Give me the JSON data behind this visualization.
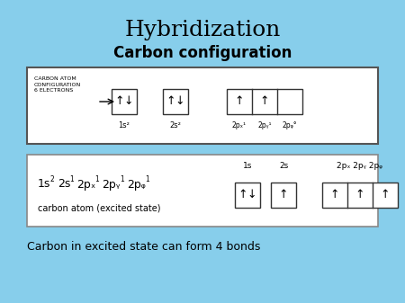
{
  "title": "Hybridization",
  "subtitle": "Carbon configuration",
  "bg_color": "#87CEEB",
  "footer_text": "Carbon in excited state can form 4 bonds",
  "box1_side_label": "CARBON ATOM\nCONFIGURATION\n6 ELECTRONS",
  "label_1s2": "1s²",
  "label_2s2": "2s²",
  "label_2px1": "2pₓ¹",
  "label_2py1": "2pᵧ¹",
  "label_2pz0": "2pᵩ°",
  "box2_header": "1s",
  "box2_header2": "2s",
  "box2_header3": "2pₓ 2pᵧ 2pᵩ",
  "box2_sublabel": "carbon atom (excited state)",
  "subtitle_fontsize": 12,
  "title_fontsize": 18
}
